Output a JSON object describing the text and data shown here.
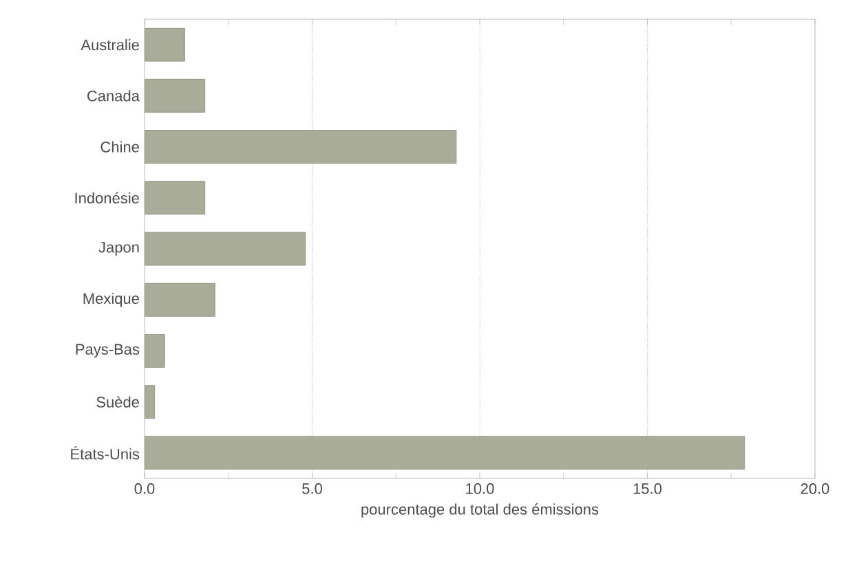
{
  "chart_data": {
    "type": "bar",
    "orientation": "horizontal",
    "xlabel": "pourcentage du total des émissions",
    "categories": [
      "Australie",
      "Canada",
      "Chine",
      "Indonésie",
      "Japon",
      "Mexique",
      "Pays-Bas",
      "Suède",
      "États-Unis"
    ],
    "values": [
      1.2,
      1.8,
      9.3,
      1.8,
      4.8,
      2.1,
      0.6,
      0.3,
      17.9
    ],
    "color": "#a8ac98",
    "xlim": [
      0,
      20
    ],
    "xticks": [
      {
        "value": 0,
        "label": "0.0"
      },
      {
        "value": 2.5,
        "label": null
      },
      {
        "value": 5,
        "label": "5.0"
      },
      {
        "value": 7.5,
        "label": null
      },
      {
        "value": 10,
        "label": "10.0"
      },
      {
        "value": 12.5,
        "label": null
      },
      {
        "value": 15,
        "label": "15.0"
      },
      {
        "value": 17.5,
        "label": null
      },
      {
        "value": 20,
        "label": "20.0"
      }
    ],
    "grid": "x"
  }
}
